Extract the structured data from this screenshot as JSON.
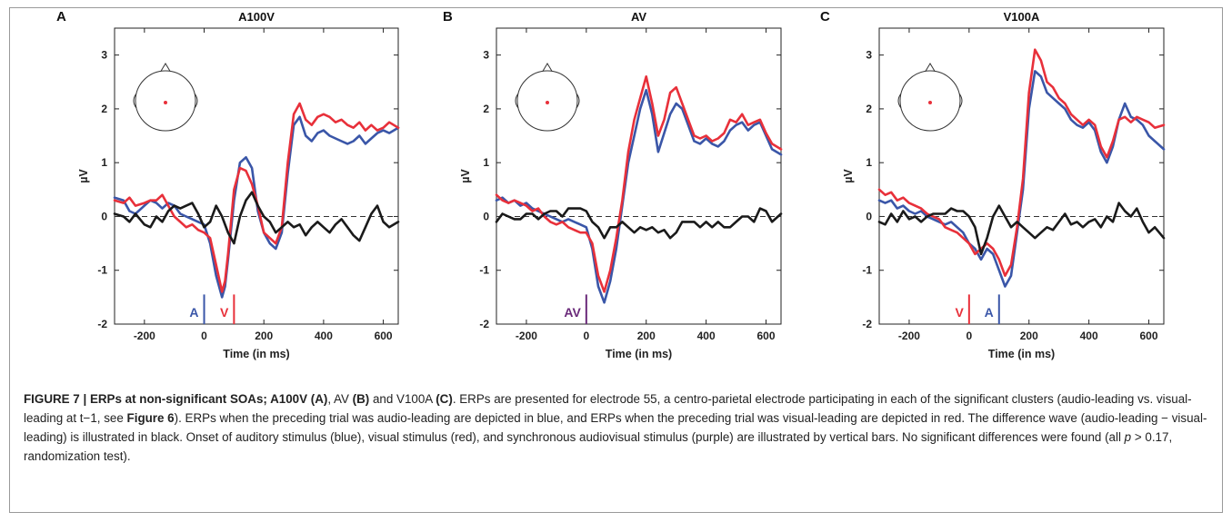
{
  "figure": {
    "caption": {
      "label": "FIGURE 7 | ERPs at non-significant SOAs; A100V (A)",
      "seg1": ", AV ",
      "b_B": "(B)",
      "seg2": " and V100A ",
      "b_C": "(C)",
      "seg3": ". ERPs are presented for electrode 55, a centro-parietal electrode participating in each of the significant clusters (audio-leading vs. visual-leading at t−1, see ",
      "fig_ref": "Figure 6",
      "seg4": "). ERPs when the preceding trial was audio-leading are depicted in blue, and ERPs when the preceding trial was visual-leading are depicted in red. The difference wave (audio-leading − visual-leading) is illustrated in black. Onset of auditory stimulus (blue), visual stimulus (red), and synchronous audiovisual stimulus (purple) are illustrated by vertical bars. No significant differences were found (all ",
      "p_symbol": "p",
      "seg5": " > 0.17, randomization test)."
    }
  },
  "colors": {
    "blue": "#3a56a8",
    "red": "#e8303a",
    "black": "#1a1a1a",
    "purple": "#6a2a7a",
    "electrode": "#e8303a"
  },
  "chart_data": [
    {
      "panel_letter": "A",
      "type": "line",
      "title": "A100V",
      "xlabel": "Time (in ms)",
      "ylabel": "µV",
      "xlim": [
        -300,
        650
      ],
      "ylim": [
        -2,
        3.5
      ],
      "xticks": [
        -200,
        0,
        200,
        400,
        600
      ],
      "yticks": [
        -2,
        -1,
        0,
        1,
        2,
        3
      ],
      "zero_line": "dashed",
      "head_inset": true,
      "markers": [
        {
          "label": "A",
          "x": 0,
          "color": "blue"
        },
        {
          "label": "V",
          "x": 100,
          "color": "red"
        }
      ],
      "series": [
        {
          "color": "blue",
          "x": [
            -300,
            -270,
            -250,
            -230,
            -200,
            -180,
            -160,
            -140,
            -120,
            -100,
            -80,
            -60,
            -40,
            -20,
            0,
            20,
            40,
            60,
            70,
            80,
            100,
            120,
            140,
            160,
            180,
            200,
            220,
            240,
            260,
            280,
            300,
            320,
            340,
            360,
            380,
            400,
            420,
            440,
            460,
            480,
            500,
            520,
            540,
            560,
            580,
            600,
            620,
            650
          ],
          "values": [
            0.35,
            0.3,
            0.1,
            0.05,
            0.2,
            0.3,
            0.25,
            0.15,
            0.25,
            0.2,
            0.05,
            0.0,
            -0.05,
            -0.1,
            -0.15,
            -0.5,
            -1.1,
            -1.5,
            -1.3,
            -0.8,
            0.3,
            1.0,
            1.1,
            0.9,
            0.1,
            -0.3,
            -0.5,
            -0.6,
            -0.3,
            0.8,
            1.7,
            1.85,
            1.5,
            1.4,
            1.55,
            1.6,
            1.5,
            1.45,
            1.4,
            1.35,
            1.4,
            1.5,
            1.35,
            1.45,
            1.55,
            1.6,
            1.55,
            1.65
          ]
        },
        {
          "color": "red",
          "x": [
            -300,
            -270,
            -250,
            -230,
            -200,
            -180,
            -160,
            -140,
            -120,
            -100,
            -80,
            -60,
            -40,
            -20,
            0,
            20,
            40,
            60,
            70,
            80,
            100,
            120,
            140,
            160,
            180,
            200,
            220,
            240,
            260,
            280,
            300,
            320,
            340,
            360,
            380,
            400,
            420,
            440,
            460,
            480,
            500,
            520,
            540,
            560,
            580,
            600,
            620,
            650
          ],
          "values": [
            0.3,
            0.25,
            0.35,
            0.2,
            0.25,
            0.3,
            0.3,
            0.4,
            0.2,
            0.0,
            -0.1,
            -0.2,
            -0.15,
            -0.25,
            -0.3,
            -0.4,
            -0.9,
            -1.4,
            -1.2,
            -0.7,
            0.5,
            0.9,
            0.85,
            0.6,
            0.2,
            -0.3,
            -0.4,
            -0.5,
            -0.2,
            1.0,
            1.9,
            2.1,
            1.8,
            1.7,
            1.85,
            1.9,
            1.85,
            1.75,
            1.8,
            1.7,
            1.65,
            1.75,
            1.6,
            1.7,
            1.6,
            1.65,
            1.75,
            1.65
          ]
        },
        {
          "color": "black",
          "x": [
            -300,
            -270,
            -250,
            -230,
            -200,
            -180,
            -160,
            -140,
            -120,
            -100,
            -80,
            -60,
            -40,
            -20,
            0,
            20,
            40,
            60,
            80,
            100,
            120,
            140,
            160,
            180,
            200,
            220,
            240,
            260,
            280,
            300,
            320,
            340,
            360,
            380,
            400,
            420,
            440,
            460,
            480,
            500,
            520,
            540,
            560,
            580,
            600,
            620,
            650
          ],
          "values": [
            0.05,
            0.0,
            -0.1,
            0.05,
            -0.15,
            -0.2,
            0.0,
            -0.1,
            0.1,
            0.2,
            0.15,
            0.2,
            0.25,
            0.05,
            -0.2,
            -0.1,
            0.2,
            0.0,
            -0.3,
            -0.5,
            0.0,
            0.3,
            0.45,
            0.2,
            0.0,
            -0.1,
            -0.3,
            -0.2,
            -0.1,
            -0.2,
            -0.15,
            -0.35,
            -0.2,
            -0.1,
            -0.2,
            -0.3,
            -0.15,
            -0.05,
            -0.2,
            -0.35,
            -0.45,
            -0.2,
            0.05,
            0.2,
            -0.1,
            -0.2,
            -0.1
          ]
        }
      ]
    },
    {
      "panel_letter": "B",
      "type": "line",
      "title": "AV",
      "xlabel": "Time (in ms)",
      "ylabel": "µV",
      "xlim": [
        -300,
        650
      ],
      "ylim": [
        -2,
        3.5
      ],
      "xticks": [
        -200,
        0,
        200,
        400,
        600
      ],
      "yticks": [
        -2,
        -1,
        0,
        1,
        2,
        3
      ],
      "zero_line": "dashed",
      "head_inset": true,
      "markers": [
        {
          "label": "AV",
          "x": 0,
          "color": "purple"
        }
      ],
      "series": [
        {
          "color": "blue",
          "x": [
            -300,
            -280,
            -260,
            -240,
            -220,
            -200,
            -180,
            -160,
            -140,
            -120,
            -100,
            -80,
            -60,
            -40,
            -20,
            0,
            20,
            40,
            60,
            80,
            100,
            120,
            140,
            160,
            180,
            200,
            220,
            240,
            260,
            280,
            300,
            320,
            340,
            360,
            380,
            400,
            420,
            440,
            460,
            480,
            500,
            520,
            540,
            560,
            580,
            600,
            620,
            650
          ],
          "values": [
            0.3,
            0.35,
            0.25,
            0.3,
            0.2,
            0.25,
            0.15,
            0.1,
            0.05,
            0.0,
            -0.05,
            -0.1,
            -0.05,
            -0.1,
            -0.15,
            -0.2,
            -0.6,
            -1.3,
            -1.6,
            -1.2,
            -0.6,
            0.2,
            1.0,
            1.5,
            2.0,
            2.35,
            1.9,
            1.2,
            1.55,
            1.9,
            2.1,
            2.0,
            1.7,
            1.4,
            1.35,
            1.45,
            1.35,
            1.3,
            1.4,
            1.6,
            1.7,
            1.75,
            1.6,
            1.7,
            1.75,
            1.5,
            1.25,
            1.15
          ]
        },
        {
          "color": "red",
          "x": [
            -300,
            -280,
            -260,
            -240,
            -220,
            -200,
            -180,
            -160,
            -140,
            -120,
            -100,
            -80,
            -60,
            -40,
            -20,
            0,
            20,
            40,
            60,
            80,
            100,
            120,
            140,
            160,
            180,
            200,
            220,
            240,
            260,
            280,
            300,
            320,
            340,
            360,
            380,
            400,
            420,
            440,
            460,
            480,
            500,
            520,
            540,
            560,
            580,
            600,
            620,
            650
          ],
          "values": [
            0.4,
            0.3,
            0.25,
            0.3,
            0.25,
            0.2,
            0.1,
            0.15,
            0.0,
            -0.1,
            -0.15,
            -0.1,
            -0.2,
            -0.25,
            -0.3,
            -0.3,
            -0.5,
            -1.1,
            -1.4,
            -1.0,
            -0.4,
            0.3,
            1.2,
            1.8,
            2.2,
            2.6,
            2.1,
            1.5,
            1.8,
            2.3,
            2.4,
            2.1,
            1.8,
            1.5,
            1.45,
            1.5,
            1.4,
            1.45,
            1.55,
            1.8,
            1.75,
            1.9,
            1.7,
            1.75,
            1.8,
            1.55,
            1.35,
            1.25
          ]
        },
        {
          "color": "black",
          "x": [
            -300,
            -280,
            -260,
            -240,
            -220,
            -200,
            -180,
            -160,
            -140,
            -120,
            -100,
            -80,
            -60,
            -40,
            -20,
            0,
            20,
            40,
            60,
            80,
            100,
            120,
            140,
            160,
            180,
            200,
            220,
            240,
            260,
            280,
            300,
            320,
            340,
            360,
            380,
            400,
            420,
            440,
            460,
            480,
            500,
            520,
            540,
            560,
            580,
            600,
            620,
            650
          ],
          "values": [
            -0.1,
            0.05,
            0.0,
            -0.05,
            -0.05,
            0.05,
            0.05,
            -0.05,
            0.05,
            0.1,
            0.1,
            0.0,
            0.15,
            0.15,
            0.15,
            0.1,
            -0.1,
            -0.2,
            -0.4,
            -0.2,
            -0.2,
            -0.1,
            -0.2,
            -0.3,
            -0.2,
            -0.25,
            -0.2,
            -0.3,
            -0.25,
            -0.4,
            -0.3,
            -0.1,
            -0.1,
            -0.1,
            -0.2,
            -0.1,
            -0.2,
            -0.1,
            -0.2,
            -0.2,
            -0.1,
            0.0,
            0.0,
            -0.1,
            0.15,
            0.1,
            -0.1,
            0.05
          ]
        }
      ]
    },
    {
      "panel_letter": "C",
      "type": "line",
      "title": "V100A",
      "xlabel": "Time (in ms)",
      "ylabel": "µV",
      "xlim": [
        -300,
        650
      ],
      "ylim": [
        -2,
        3.5
      ],
      "xticks": [
        -200,
        0,
        200,
        400,
        600
      ],
      "yticks": [
        -2,
        -1,
        0,
        1,
        2,
        3
      ],
      "zero_line": "dashed",
      "head_inset": true,
      "markers": [
        {
          "label": "V",
          "x": 0,
          "color": "red"
        },
        {
          "label": "A",
          "x": 100,
          "color": "blue"
        }
      ],
      "series": [
        {
          "color": "blue",
          "x": [
            -300,
            -280,
            -260,
            -240,
            -220,
            -200,
            -180,
            -160,
            -140,
            -120,
            -100,
            -80,
            -60,
            -40,
            -20,
            0,
            20,
            40,
            60,
            80,
            100,
            120,
            140,
            160,
            180,
            200,
            220,
            240,
            260,
            280,
            300,
            320,
            340,
            360,
            380,
            400,
            420,
            440,
            460,
            480,
            500,
            520,
            540,
            560,
            580,
            600,
            620,
            650
          ],
          "values": [
            0.3,
            0.25,
            0.3,
            0.15,
            0.2,
            0.1,
            0.05,
            0.1,
            0.0,
            -0.05,
            -0.1,
            -0.15,
            -0.1,
            -0.2,
            -0.3,
            -0.5,
            -0.6,
            -0.8,
            -0.6,
            -0.7,
            -1.0,
            -1.3,
            -1.1,
            -0.3,
            0.5,
            2.0,
            2.7,
            2.6,
            2.3,
            2.2,
            2.1,
            2.0,
            1.8,
            1.7,
            1.65,
            1.75,
            1.6,
            1.2,
            1.0,
            1.3,
            1.8,
            2.1,
            1.85,
            1.8,
            1.7,
            1.5,
            1.4,
            1.25
          ]
        },
        {
          "color": "red",
          "x": [
            -300,
            -280,
            -260,
            -240,
            -220,
            -200,
            -180,
            -160,
            -140,
            -120,
            -100,
            -80,
            -60,
            -40,
            -20,
            0,
            20,
            40,
            60,
            80,
            100,
            120,
            140,
            160,
            180,
            200,
            220,
            240,
            260,
            280,
            300,
            320,
            340,
            360,
            380,
            400,
            420,
            440,
            460,
            480,
            500,
            520,
            540,
            560,
            580,
            600,
            620,
            650
          ],
          "values": [
            0.5,
            0.4,
            0.45,
            0.3,
            0.35,
            0.25,
            0.2,
            0.15,
            0.05,
            0.0,
            -0.05,
            -0.2,
            -0.25,
            -0.3,
            -0.4,
            -0.5,
            -0.7,
            -0.6,
            -0.5,
            -0.6,
            -0.8,
            -1.1,
            -0.9,
            -0.2,
            0.7,
            2.3,
            3.1,
            2.9,
            2.5,
            2.4,
            2.2,
            2.1,
            1.9,
            1.8,
            1.7,
            1.8,
            1.7,
            1.3,
            1.1,
            1.4,
            1.8,
            1.85,
            1.75,
            1.85,
            1.8,
            1.75,
            1.65,
            1.7
          ]
        },
        {
          "color": "black",
          "x": [
            -300,
            -280,
            -260,
            -240,
            -220,
            -200,
            -180,
            -160,
            -140,
            -120,
            -100,
            -80,
            -60,
            -40,
            -20,
            0,
            20,
            40,
            60,
            80,
            100,
            120,
            140,
            160,
            180,
            200,
            220,
            240,
            260,
            280,
            300,
            320,
            340,
            360,
            380,
            400,
            420,
            440,
            460,
            480,
            500,
            520,
            540,
            560,
            580,
            600,
            620,
            650
          ],
          "values": [
            -0.1,
            -0.15,
            0.05,
            -0.1,
            0.1,
            -0.05,
            0.0,
            -0.1,
            0.0,
            0.05,
            0.05,
            0.05,
            0.15,
            0.1,
            0.1,
            0.0,
            -0.2,
            -0.7,
            -0.4,
            0.0,
            0.2,
            0.0,
            -0.2,
            -0.1,
            -0.2,
            -0.3,
            -0.4,
            -0.3,
            -0.2,
            -0.25,
            -0.1,
            0.05,
            -0.15,
            -0.1,
            -0.2,
            -0.1,
            -0.05,
            -0.2,
            0.0,
            -0.1,
            0.25,
            0.1,
            0.0,
            0.15,
            -0.1,
            -0.3,
            -0.2,
            -0.4
          ]
        }
      ]
    }
  ]
}
